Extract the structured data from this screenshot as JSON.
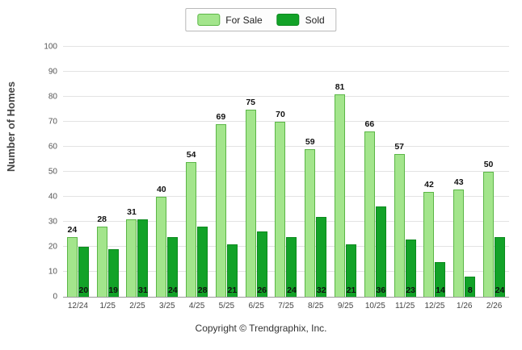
{
  "chart_data": {
    "type": "bar",
    "categories": [
      "12/24",
      "1/25",
      "2/25",
      "3/25",
      "4/25",
      "5/25",
      "6/25",
      "7/25",
      "8/25",
      "9/25",
      "10/25",
      "11/25",
      "12/25",
      "1/26",
      "2/26"
    ],
    "series": [
      {
        "name": "For Sale",
        "values": [
          24,
          28,
          31,
          40,
          54,
          69,
          75,
          70,
          59,
          81,
          66,
          57,
          42,
          43,
          50
        ],
        "color": "#a3e58c",
        "border": "#5bb646",
        "label_position": "above"
      },
      {
        "name": "Sold",
        "values": [
          20,
          19,
          31,
          24,
          28,
          21,
          26,
          24,
          32,
          21,
          36,
          23,
          14,
          8,
          24
        ],
        "color": "#12a228",
        "border": "#0c8a1e",
        "label_position": "inside-bottom"
      }
    ],
    "title": "",
    "xlabel": "",
    "ylabel": "Number of Homes",
    "ylim": [
      0,
      100
    ],
    "ytick_step": 10,
    "grid": true,
    "legend_position": "top-center"
  },
  "footer": {
    "copyright": "Copyright © Trendgraphix, Inc."
  }
}
